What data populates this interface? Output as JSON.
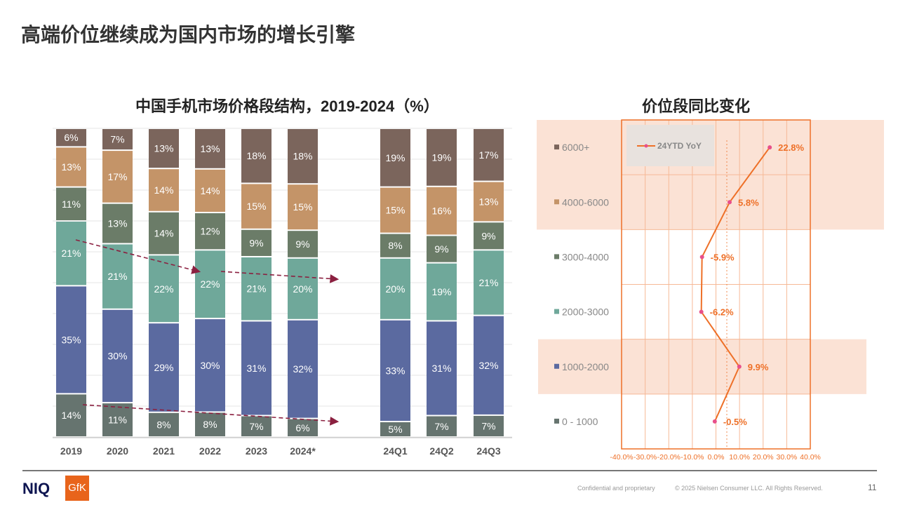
{
  "title": "高端价位继续成为国内市场的增长引擎",
  "footer": {
    "logo_niq": "NIQ",
    "logo_gfk": "GfK",
    "confidential": "Confidential and proprietary",
    "copyright": "© 2025 Nielsen Consumer LLC. All Rights Reserved.",
    "page": "11"
  },
  "chart_data": [
    {
      "type": "bar",
      "stacked": true,
      "title": "中国手机市场价格段结构，2019-2024（%）",
      "categories": [
        "2019",
        "2020",
        "2021",
        "2022",
        "2023",
        "2024*",
        "24Q1",
        "24Q2",
        "24Q3"
      ],
      "series": [
        {
          "name": "0 - 1000",
          "color": "#66746f",
          "values": [
            14,
            11,
            8,
            8,
            7,
            6,
            5,
            7,
            7
          ]
        },
        {
          "name": "1000-2000",
          "color": "#5b6aa0",
          "values": [
            35,
            30,
            29,
            30,
            31,
            32,
            33,
            31,
            32
          ]
        },
        {
          "name": "2000-3000",
          "color": "#6fa89a",
          "values": [
            21,
            21,
            22,
            22,
            21,
            20,
            20,
            19,
            21
          ]
        },
        {
          "name": "3000-4000",
          "color": "#6b7c68",
          "values": [
            11,
            13,
            14,
            12,
            9,
            9,
            8,
            9,
            9
          ]
        },
        {
          "name": "4000-6000",
          "color": "#c49468",
          "values": [
            13,
            17,
            14,
            14,
            15,
            15,
            15,
            16,
            13
          ]
        },
        {
          "name": "6000+",
          "color": "#7b655c",
          "values": [
            6,
            7,
            13,
            13,
            18,
            18,
            19,
            19,
            17
          ]
        }
      ]
    },
    {
      "type": "line",
      "title": "价位段同比变化",
      "series": [
        {
          "name": "24YTD YoY",
          "color": "#ee7028",
          "categories": [
            "6000+",
            "4000-6000",
            "3000-4000",
            "2000-3000",
            "1000-2000",
            "0 - 1000"
          ],
          "values": [
            22.8,
            5.8,
            -5.9,
            -6.2,
            9.9,
            -0.5
          ],
          "labels": [
            "22.8%",
            "5.8%",
            "-5.9%",
            "-6.2%",
            "9.9%",
            "-0.5%"
          ]
        }
      ],
      "xlim": [
        -40,
        40
      ],
      "xticks": [
        "-40.0%",
        "-30.0%",
        "-20.0%",
        "-10.0%",
        "0.0%",
        "10.0%",
        "20.0%",
        "30.0%",
        "40.0%"
      ],
      "highlighted": [
        "6000+",
        "4000-6000",
        "1000-2000"
      ]
    }
  ]
}
